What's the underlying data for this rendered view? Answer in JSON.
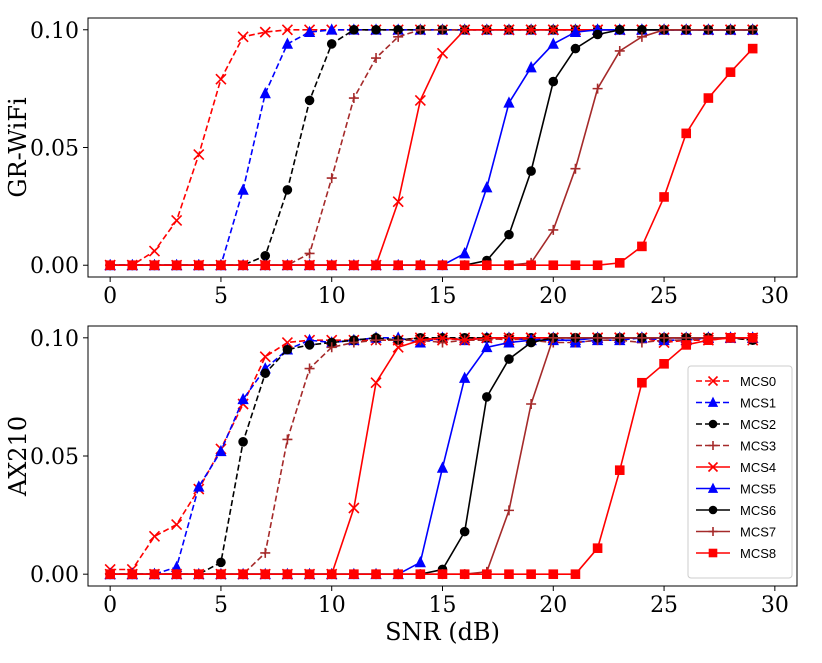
{
  "chart_data": {
    "type": "line",
    "xlabel": "SNR (dB)",
    "x": [
      0,
      1,
      2,
      3,
      4,
      5,
      6,
      7,
      8,
      9,
      10,
      11,
      12,
      13,
      14,
      15,
      16,
      17,
      18,
      19,
      20,
      21,
      22,
      23,
      24,
      25,
      26,
      27,
      28,
      29
    ],
    "xlim": [
      -1,
      31
    ],
    "xticks": [
      0,
      5,
      10,
      15,
      20,
      25,
      30
    ],
    "xtick_labels": [
      "0",
      "5",
      "10",
      "15",
      "20",
      "25",
      "30"
    ],
    "ylim": [
      -0.005,
      0.105
    ],
    "yticks": [
      0.0,
      0.05,
      0.1
    ],
    "ytick_labels": [
      "0.00",
      "0.05",
      "0.10"
    ],
    "legend": {
      "location": "right",
      "entries": [
        "MCS0",
        "MCS1",
        "MCS2",
        "MCS3",
        "MCS4",
        "MCS5",
        "MCS6",
        "MCS7",
        "MCS8"
      ]
    },
    "series_styles": [
      {
        "name": "MCS0",
        "color": "#ff0000",
        "dash": true,
        "marker": "x"
      },
      {
        "name": "MCS1",
        "color": "#0000ff",
        "dash": true,
        "marker": "triangle"
      },
      {
        "name": "MCS2",
        "color": "#000000",
        "dash": true,
        "marker": "circle"
      },
      {
        "name": "MCS3",
        "color": "#a52a2a",
        "dash": true,
        "marker": "plus"
      },
      {
        "name": "MCS4",
        "color": "#ff0000",
        "dash": false,
        "marker": "x"
      },
      {
        "name": "MCS5",
        "color": "#0000ff",
        "dash": false,
        "marker": "triangle"
      },
      {
        "name": "MCS6",
        "color": "#000000",
        "dash": false,
        "marker": "circle"
      },
      {
        "name": "MCS7",
        "color": "#a52a2a",
        "dash": false,
        "marker": "plus"
      },
      {
        "name": "MCS8",
        "color": "#ff0000",
        "dash": false,
        "marker": "square"
      }
    ],
    "panels": [
      {
        "ylabel": "GR-WiFi",
        "series": [
          {
            "name": "MCS0",
            "values": [
              0,
              0,
              0.006,
              0.019,
              0.047,
              0.079,
              0.097,
              0.099,
              0.1,
              0.1,
              0.1,
              0.1,
              0.1,
              0.1,
              0.1,
              0.1,
              0.1,
              0.1,
              0.1,
              0.1,
              0.1,
              0.1,
              0.1,
              0.1,
              0.1,
              0.1,
              0.1,
              0.1,
              0.1,
              0.1
            ]
          },
          {
            "name": "MCS1",
            "values": [
              0,
              0,
              0,
              0,
              0,
              0,
              0.032,
              0.073,
              0.094,
              0.099,
              0.1,
              0.1,
              0.1,
              0.1,
              0.1,
              0.1,
              0.1,
              0.1,
              0.1,
              0.1,
              0.1,
              0.1,
              0.1,
              0.1,
              0.1,
              0.1,
              0.1,
              0.1,
              0.1,
              0.1
            ]
          },
          {
            "name": "MCS2",
            "values": [
              0,
              0,
              0,
              0,
              0,
              0,
              0,
              0.004,
              0.032,
              0.07,
              0.094,
              0.1,
              0.1,
              0.1,
              0.1,
              0.1,
              0.1,
              0.1,
              0.1,
              0.1,
              0.1,
              0.1,
              0.1,
              0.1,
              0.1,
              0.1,
              0.1,
              0.1,
              0.1,
              0.1
            ]
          },
          {
            "name": "MCS3",
            "values": [
              0,
              0,
              0,
              0,
              0,
              0,
              0,
              0,
              0,
              0.005,
              0.037,
              0.071,
              0.088,
              0.097,
              0.1,
              0.1,
              0.1,
              0.1,
              0.1,
              0.1,
              0.1,
              0.1,
              0.1,
              0.1,
              0.1,
              0.1,
              0.1,
              0.1,
              0.1,
              0.1
            ]
          },
          {
            "name": "MCS4",
            "values": [
              0,
              0,
              0,
              0,
              0,
              0,
              0,
              0,
              0,
              0,
              0,
              0,
              0,
              0.027,
              0.07,
              0.09,
              0.1,
              0.1,
              0.1,
              0.1,
              0.1,
              0.1,
              0.1,
              0.1,
              0.1,
              0.1,
              0.1,
              0.1,
              0.1,
              0.1
            ]
          },
          {
            "name": "MCS5",
            "values": [
              0,
              0,
              0,
              0,
              0,
              0,
              0,
              0,
              0,
              0,
              0,
              0,
              0,
              0,
              0,
              0,
              0.005,
              0.033,
              0.069,
              0.084,
              0.094,
              0.099,
              0.1,
              0.1,
              0.1,
              0.1,
              0.1,
              0.1,
              0.1,
              0.1
            ]
          },
          {
            "name": "MCS6",
            "values": [
              0,
              0,
              0,
              0,
              0,
              0,
              0,
              0,
              0,
              0,
              0,
              0,
              0,
              0,
              0,
              0,
              0,
              0.002,
              0.013,
              0.04,
              0.078,
              0.092,
              0.098,
              0.1,
              0.1,
              0.1,
              0.1,
              0.1,
              0.1,
              0.1
            ]
          },
          {
            "name": "MCS7",
            "values": [
              0,
              0,
              0,
              0,
              0,
              0,
              0,
              0,
              0,
              0,
              0,
              0,
              0,
              0,
              0,
              0,
              0,
              0,
              0,
              0.001,
              0.015,
              0.041,
              0.075,
              0.091,
              0.097,
              0.1,
              0.1,
              0.1,
              0.1,
              0.1
            ]
          },
          {
            "name": "MCS8",
            "values": [
              0,
              0,
              0,
              0,
              0,
              0,
              0,
              0,
              0,
              0,
              0,
              0,
              0,
              0,
              0,
              0,
              0,
              0,
              0,
              0,
              0,
              0,
              0,
              0.001,
              0.008,
              0.029,
              0.056,
              0.071,
              0.082,
              0.092
            ]
          }
        ]
      },
      {
        "ylabel": "AX210",
        "series": [
          {
            "name": "MCS0",
            "values": [
              0.002,
              0.002,
              0.016,
              0.021,
              0.036,
              0.053,
              0.072,
              0.092,
              0.098,
              0.099,
              0.099,
              0.099,
              0.099,
              0.099,
              0.1,
              0.099,
              0.1,
              0.1,
              0.099,
              0.1,
              0.1,
              0.1,
              0.1,
              0.1,
              0.1,
              0.098,
              0.099,
              0.099,
              0.1,
              0.099
            ]
          },
          {
            "name": "MCS1",
            "values": [
              0,
              0,
              0,
              0.003,
              0.037,
              0.052,
              0.074,
              0.087,
              0.095,
              0.099,
              0.098,
              0.099,
              0.1,
              0.1,
              0.098,
              0.1,
              0.099,
              0.1,
              0.1,
              0.099,
              0.1,
              0.098,
              0.099,
              0.099,
              0.1,
              0.099,
              0.099,
              0.1,
              0.1,
              0.1
            ]
          },
          {
            "name": "MCS2",
            "values": [
              0,
              0,
              0,
              0,
              0,
              0.005,
              0.056,
              0.085,
              0.095,
              0.097,
              0.098,
              0.099,
              0.1,
              0.099,
              0.1,
              0.1,
              0.1,
              0.1,
              0.1,
              0.1,
              0.1,
              0.1,
              0.1,
              0.1,
              0.1,
              0.1,
              0.1,
              0.1,
              0.1,
              0.099
            ]
          },
          {
            "name": "MCS3",
            "values": [
              0,
              0,
              0,
              0,
              0,
              0,
              0,
              0.009,
              0.057,
              0.087,
              0.096,
              0.098,
              0.099,
              0.099,
              0.099,
              0.098,
              0.099,
              0.099,
              0.1,
              0.099,
              0.098,
              0.098,
              0.099,
              0.099,
              0.098,
              0.099,
              0.099,
              0.1,
              0.1,
              0.1
            ]
          },
          {
            "name": "MCS4",
            "values": [
              0,
              0,
              0,
              0,
              0,
              0,
              0,
              0,
              0,
              0,
              0,
              0.028,
              0.081,
              0.096,
              0.099,
              0.1,
              0.099,
              0.1,
              0.1,
              0.1,
              0.1,
              0.1,
              0.1,
              0.1,
              0.1,
              0.1,
              0.1,
              0.1,
              0.1,
              0.1
            ]
          },
          {
            "name": "MCS5",
            "values": [
              0,
              0,
              0,
              0,
              0,
              0,
              0,
              0,
              0,
              0,
              0,
              0,
              0,
              0,
              0.005,
              0.045,
              0.083,
              0.096,
              0.098,
              0.099,
              0.099,
              0.099,
              0.1,
              0.1,
              0.1,
              0.1,
              0.1,
              0.1,
              0.1,
              0.1
            ]
          },
          {
            "name": "MCS6",
            "values": [
              0,
              0,
              0,
              0,
              0,
              0,
              0,
              0,
              0,
              0,
              0,
              0,
              0,
              0,
              0,
              0.002,
              0.018,
              0.075,
              0.091,
              0.098,
              0.1,
              0.1,
              0.1,
              0.1,
              0.1,
              0.1,
              0.1,
              0.1,
              0.1,
              0.1
            ]
          },
          {
            "name": "MCS7",
            "values": [
              0,
              0,
              0,
              0,
              0,
              0,
              0,
              0,
              0,
              0,
              0,
              0,
              0,
              0,
              0,
              0,
              0,
              0.001,
              0.027,
              0.072,
              0.1,
              0.1,
              0.1,
              0.1,
              0.1,
              0.1,
              0.1,
              0.1,
              0.1,
              0.1
            ]
          },
          {
            "name": "MCS8",
            "values": [
              0,
              0,
              0,
              0,
              0,
              0,
              0,
              0,
              0,
              0,
              0,
              0,
              0,
              0,
              0,
              0,
              0,
              0,
              0,
              0,
              0,
              0,
              0.011,
              0.044,
              0.081,
              0.089,
              0.097,
              0.099,
              0.1,
              0.1
            ]
          }
        ]
      }
    ]
  }
}
